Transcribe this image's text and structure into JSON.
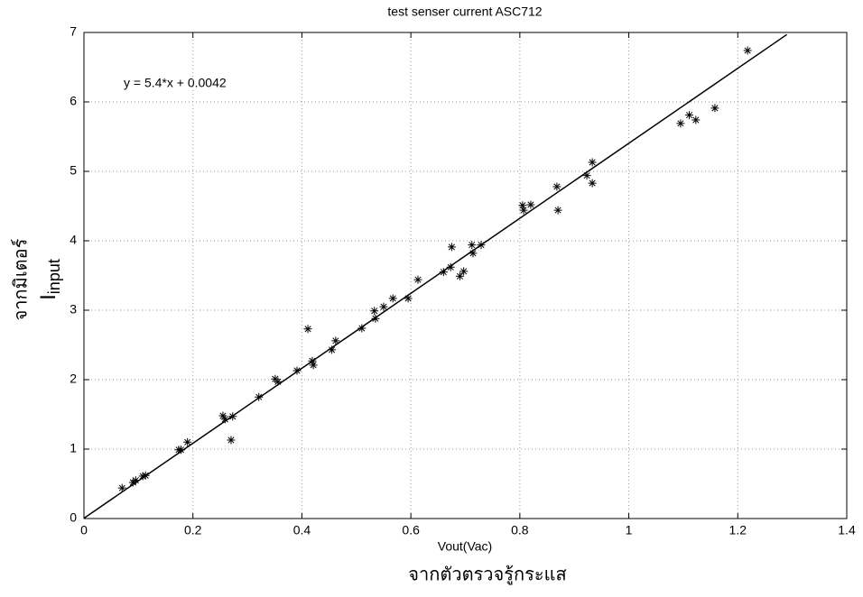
{
  "chart_data": {
    "type": "scatter",
    "title": "test senser current ASC712",
    "x_label": "Vout(Vac)",
    "x_label_thai": "จากตัวตรวจรู้กระแส",
    "y_label": "I",
    "y_label_subscript": "input",
    "y_label_thai": "จากมิเตอร์",
    "annotation": "y = 5.4*x + 0.0042",
    "xlim": [
      0,
      1.4
    ],
    "ylim": [
      0,
      7
    ],
    "xticks": [
      0,
      0.2,
      0.4,
      0.6,
      0.8,
      1,
      1.2,
      1.4
    ],
    "yticks": [
      0,
      1,
      2,
      3,
      4,
      5,
      6,
      7
    ],
    "grid": true,
    "color": "#000000",
    "x": [
      0.07,
      0.09,
      0.095,
      0.108,
      0.113,
      0.174,
      0.178,
      0.19,
      0.255,
      0.259,
      0.273,
      0.27,
      0.321,
      0.351,
      0.356,
      0.391,
      0.411,
      0.419,
      0.421,
      0.455,
      0.462,
      0.51,
      0.533,
      0.535,
      0.55,
      0.567,
      0.595,
      0.613,
      0.66,
      0.673,
      0.675,
      0.69,
      0.697,
      0.712,
      0.714,
      0.729,
      0.805,
      0.807,
      0.82,
      0.868,
      0.87,
      0.923,
      0.933,
      0.933,
      1.095,
      1.111,
      1.123,
      1.158,
      1.218
    ],
    "values": [
      0.44,
      0.52,
      0.55,
      0.61,
      0.62,
      0.99,
      0.99,
      1.1,
      1.48,
      1.43,
      1.47,
      1.13,
      1.75,
      2.01,
      1.97,
      2.13,
      2.73,
      2.27,
      2.21,
      2.43,
      2.56,
      2.74,
      2.99,
      2.88,
      3.05,
      3.17,
      3.17,
      3.44,
      3.55,
      3.62,
      3.91,
      3.49,
      3.56,
      3.94,
      3.82,
      3.94,
      4.51,
      4.44,
      4.52,
      4.78,
      4.44,
      4.94,
      5.13,
      4.83,
      5.69,
      5.81,
      5.74,
      5.91,
      6.74
    ],
    "fit_line": {
      "x": [
        0,
        1.29
      ],
      "values": [
        0.0042,
        6.97
      ],
      "color": "#000000"
    }
  }
}
